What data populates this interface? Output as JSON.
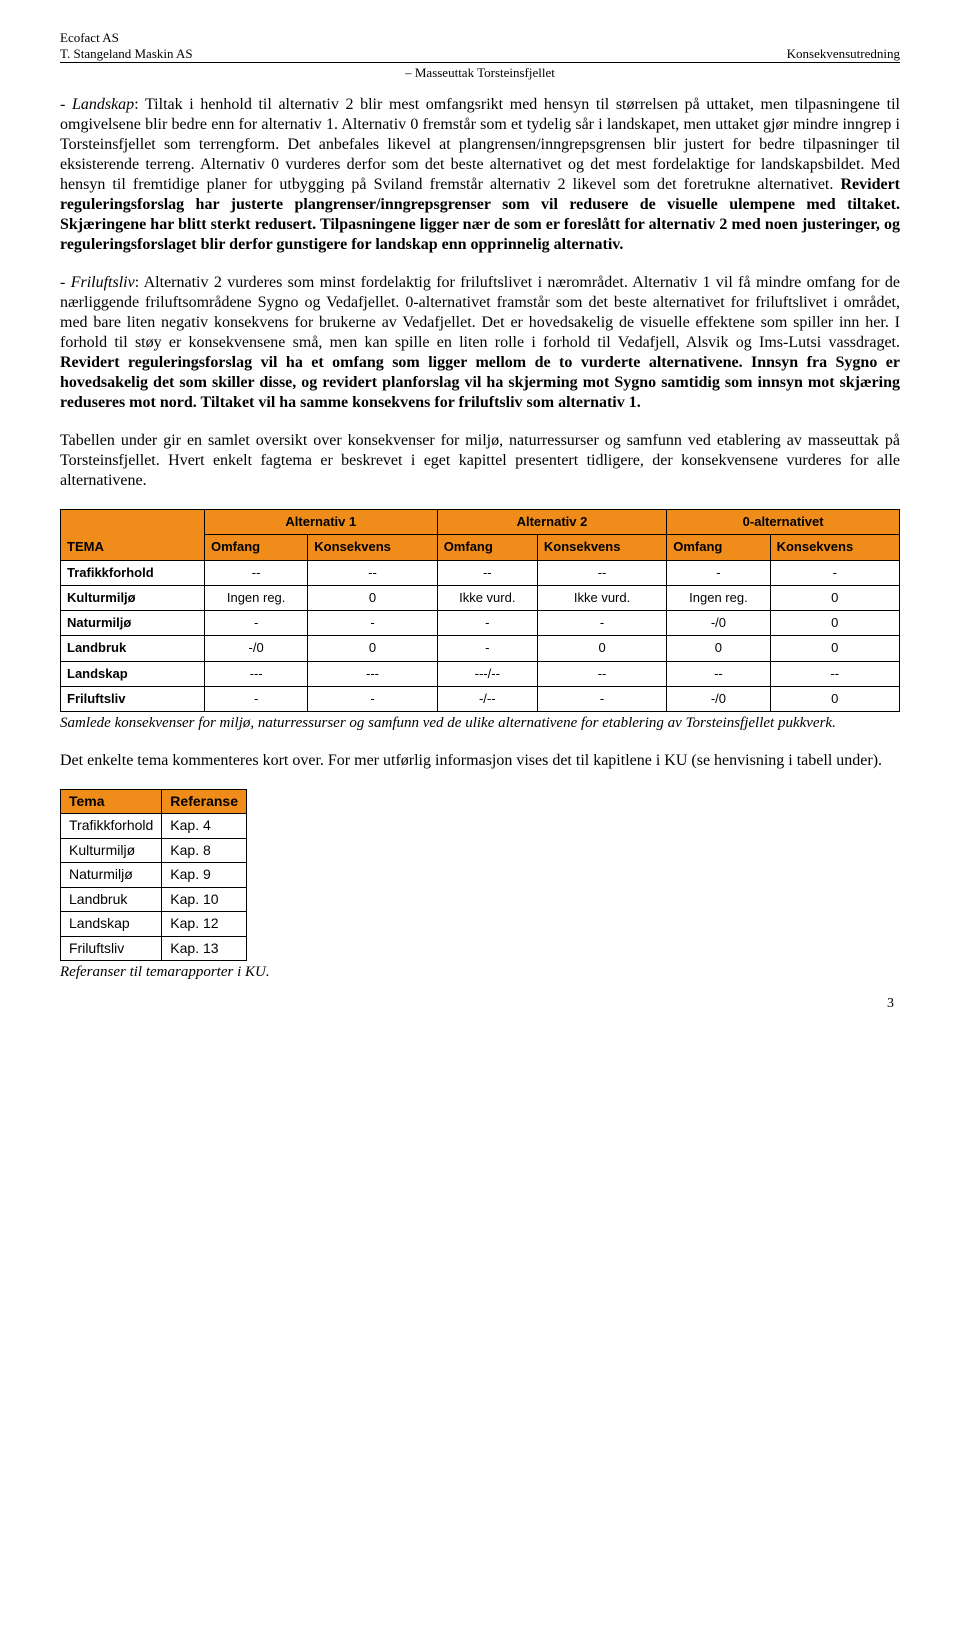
{
  "header": {
    "company1": "Ecofact AS",
    "company2": "T. Stangeland Maskin AS",
    "right": "Konsekvensutredning",
    "center": "– Masseuttak Torsteinsfjellet"
  },
  "p1": {
    "lead": "- Landskap",
    "text_a": ": Tiltak i henhold til alternativ 2 blir mest omfangsrikt med hensyn til størrelsen på uttaket, men tilpasningene til omgivelsene blir bedre enn for alternativ 1. Alternativ 0 fremstår som et tydelig sår i landskapet, men uttaket gjør mindre inngrep i Torsteinsfjellet som terrengform. Det anbefales likevel at plangrensen/inngrepsgrensen blir justert for bedre tilpasninger til eksisterende terreng. Alternativ 0 vurderes derfor som det beste alternativet og det mest fordelaktige for landskapsbildet. Med hensyn til fremtidige planer for utbygging på Sviland fremstår alternativ 2 likevel som det foretrukne alternativet. ",
    "bold_a": "Revidert reguleringsforslag har justerte plangrenser/inngrepsgrenser som vil redusere de visuelle ulempene med tiltaket. Skjæringene har blitt sterkt redusert. Tilpasningene ligger nær de som er foreslått for alternativ 2 med noen justeringer, og reguleringsforslaget blir derfor gunstigere for landskap enn opprinnelig alternativ."
  },
  "p2": {
    "lead": "- Friluftsliv",
    "text_a": ": Alternativ 2 vurderes som minst fordelaktig for friluftslivet i nærområdet. Alternativ 1 vil få mindre omfang for de nærliggende friluftsområdene Sygno og Vedafjellet. 0-alternativet framstår som det beste alternativet for friluftslivet i området, med bare liten negativ konsekvens for brukerne av Vedafjellet. Det er hovedsakelig de visuelle effektene som spiller inn her. I forhold til støy er konsekvensene små, men kan spille en liten rolle i forhold til Vedafjell, Alsvik og Ims-Lutsi vassdraget. ",
    "bold_a": "Revidert reguleringsforslag vil ha et omfang som ligger mellom de to vurderte alternativene. Innsyn fra Sygno er hovedsakelig det som skiller disse, og revidert planforslag vil ha skjerming mot Sygno samtidig som innsyn mot skjæring  reduseres mot nord. Tiltaket vil ha samme konsekvens for friluftsliv som alternativ 1."
  },
  "p3": "Tabellen under gir en samlet oversikt over konsekvenser for miljø, naturressurser og samfunn ved etablering av masseuttak på Torsteinsfjellet. Hvert enkelt fagtema er beskrevet i eget kapittel presentert tidligere, der konsekvensene vurderes for alle alternativene.",
  "table1": {
    "header_bg": "#ef8c1a",
    "row_bg": "#ffffff",
    "group_headers": [
      "Alternativ 1",
      "Alternativ 2",
      "0-alternativet"
    ],
    "col_labels": [
      "TEMA",
      "Omfang",
      "Konsekvens",
      "Omfang",
      "Konsekvens",
      "Omfang",
      "Konsekvens"
    ],
    "rows": [
      [
        "Trafikkforhold",
        "--",
        "--",
        "--",
        "--",
        "-",
        "-"
      ],
      [
        "Kulturmiljø",
        "Ingen reg.",
        "0",
        "Ikke vurd.",
        "Ikke vurd.",
        "Ingen reg.",
        "0"
      ],
      [
        "Naturmiljø",
        "-",
        "-",
        "-",
        "-",
        "-/0",
        "0"
      ],
      [
        "Landbruk",
        "-/0",
        "0",
        "-",
        "0",
        "0",
        "0"
      ],
      [
        "Landskap",
        "---",
        "---",
        "---/--",
        "--",
        "--",
        "--"
      ],
      [
        "Friluftsliv",
        "-",
        "-",
        "-/--",
        "-",
        "-/0",
        "0"
      ]
    ]
  },
  "caption1": "Samlede konsekvenser for miljø, naturressurser og samfunn ved de ulike alternativene for etablering av Torsteinsfjellet pukkverk.",
  "p4": "Det enkelte tema kommenteres kort over. For mer utførlig informasjon vises det til kapitlene i KU (se henvisning i tabell under).",
  "table2": {
    "header_bg": "#ef8c1a",
    "cols": [
      "Tema",
      "Referanse"
    ],
    "rows": [
      [
        "Trafikkforhold",
        "Kap. 4"
      ],
      [
        "Kulturmiljø",
        "Kap. 8"
      ],
      [
        "Naturmiljø",
        "Kap. 9"
      ],
      [
        "Landbruk",
        "Kap. 10"
      ],
      [
        "Landskap",
        "Kap. 12"
      ],
      [
        "Friluftsliv",
        "Kap. 13"
      ]
    ]
  },
  "caption2": "Referanser til temarapporter i KU.",
  "page_number": "3"
}
